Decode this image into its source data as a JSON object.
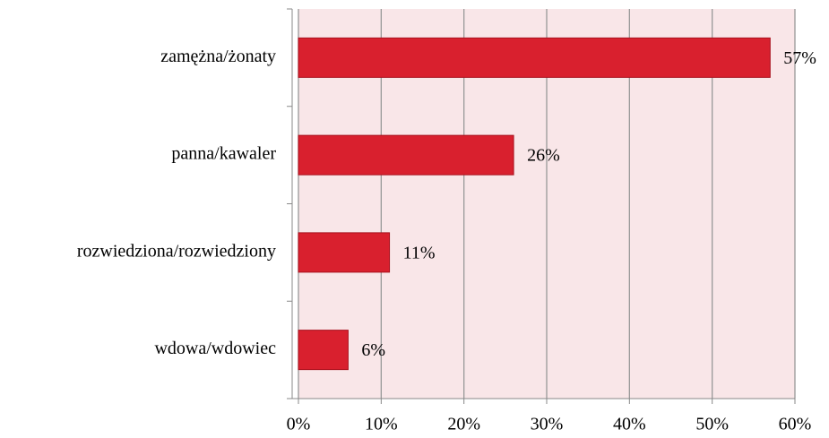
{
  "chart_data": {
    "type": "barh",
    "categories": [
      "zamężna/żonaty",
      "panna/kawaler",
      "rozwiedziona/rozwiedziony",
      "wdowa/wdowiec"
    ],
    "values": [
      57,
      26,
      11,
      6
    ],
    "value_labels": [
      "57%",
      "26%",
      "11%",
      "6%"
    ],
    "color": "#d9202e",
    "xlim": [
      0,
      60
    ],
    "xticks": [
      {
        "value": 0,
        "label": "0%"
      },
      {
        "value": 10,
        "label": "10%"
      },
      {
        "value": 20,
        "label": "20%"
      },
      {
        "value": 30,
        "label": "30%"
      },
      {
        "value": 40,
        "label": "40%"
      },
      {
        "value": 50,
        "label": "50%"
      },
      {
        "value": 60,
        "label": "60%"
      }
    ],
    "grid": true
  }
}
